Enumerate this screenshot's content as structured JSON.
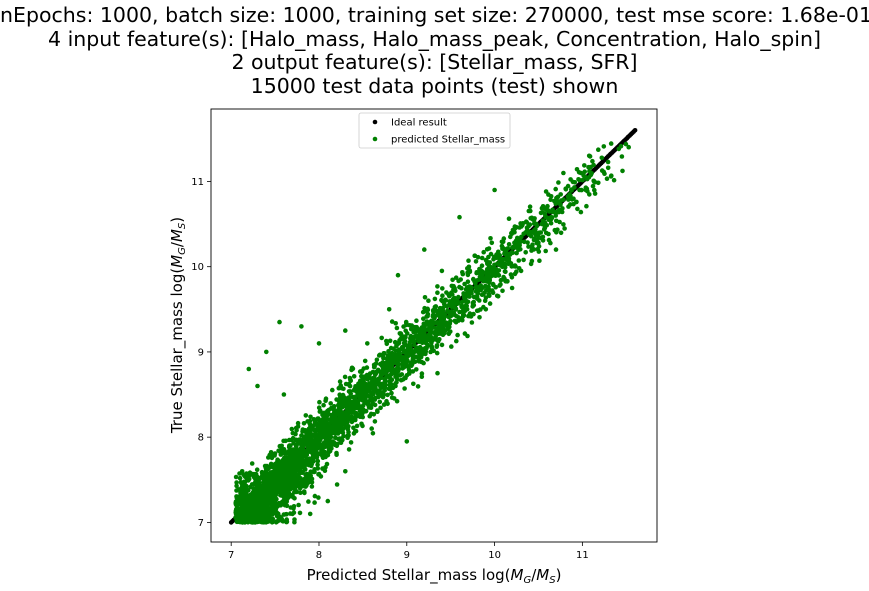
{
  "title_lines": [
    "nEpochs: 1000, batch size: 1000, training set size: 270000, test mse score: 1.68e-01",
    "4 input feature(s): [Halo_mass, Halo_mass_peak, Concentration, Halo_spin]",
    "2 output feature(s): [Stellar_mass, SFR]",
    "15000 test data points (test) shown"
  ],
  "chart_data": {
    "type": "scatter",
    "xlabel_prefix": "Predicted Stellar_mass log(",
    "ylabel_prefix": "True Stellar_mass log(",
    "label_math": {
      "M": "M",
      "G": "G",
      "slash": "/",
      "S": "S",
      "close": ")"
    },
    "xlim": [
      6.77,
      11.85
    ],
    "ylim": [
      6.77,
      11.85
    ],
    "xticks": [
      7,
      8,
      9,
      10,
      11
    ],
    "yticks": [
      7,
      8,
      9,
      10,
      11
    ],
    "legend": {
      "placement": "upper center",
      "entries": [
        "Ideal result",
        "predicted Stellar_mass"
      ]
    },
    "series": [
      {
        "name": "Ideal result",
        "color": "#000000",
        "kind": "ideal-line",
        "range": [
          7.0,
          11.6
        ]
      },
      {
        "name": "predicted Stellar_mass",
        "color": "#008000",
        "kind": "scatter",
        "points_shown": 15000,
        "x_range": [
          7.05,
          11.55
        ],
        "y_range": [
          7.0,
          11.6
        ],
        "spread": 0.17,
        "outliers": [
          [
            7.55,
            9.35
          ],
          [
            7.8,
            9.3
          ],
          [
            7.3,
            8.6
          ],
          [
            7.2,
            8.8
          ],
          [
            7.4,
            9.0
          ],
          [
            8.0,
            9.1
          ],
          [
            9.6,
            10.58
          ],
          [
            9.2,
            10.2
          ],
          [
            8.9,
            9.9
          ],
          [
            10.0,
            10.9
          ],
          [
            8.8,
            9.5
          ],
          [
            8.6,
            8.1
          ],
          [
            9.0,
            7.95
          ],
          [
            9.9,
            9.5
          ],
          [
            10.2,
            9.75
          ],
          [
            10.7,
            10.2
          ],
          [
            8.3,
            7.6
          ],
          [
            7.9,
            7.1
          ],
          [
            8.1,
            7.25
          ],
          [
            9.35,
            8.75
          ],
          [
            10.55,
            10.35
          ],
          [
            8.3,
            9.25
          ],
          [
            7.6,
            8.5
          ],
          [
            8.55,
            9.1
          ],
          [
            9.4,
            9.95
          ]
        ]
      }
    ]
  }
}
